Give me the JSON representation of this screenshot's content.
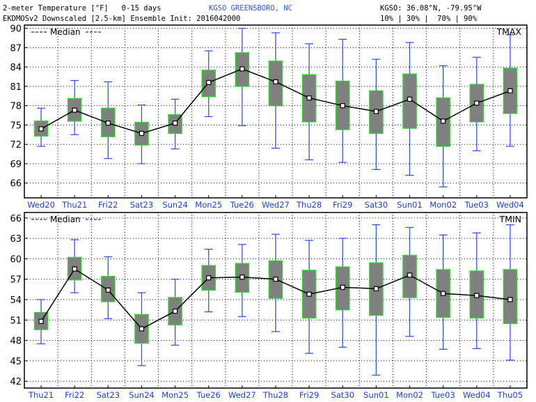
{
  "header": {
    "line1": "2-meter Temperature [°F]   0-15 days",
    "line2": "EKDMOSv2 Downscaled [2.5-km] Ensemble Init: 2016042000",
    "station": "KGSO GREENSBORO, NC",
    "coords": "KGSO: 36.08°N, -79.95°W",
    "percentiles": "10% | 30% |  70% | 90%"
  },
  "colors": {
    "box_fill": "#808080",
    "box_edge": "#33cc33",
    "whisker": "#3355ee",
    "median": "#000000",
    "tick_label": "#1a3fd6",
    "station_text": "#3355ee"
  },
  "chart_data": [
    {
      "type": "box",
      "panel_label": "TMAX",
      "legend": "Median",
      "categories": [
        "Wed20",
        "Thu21",
        "Fri22",
        "Sat23",
        "Sun24",
        "Mon25",
        "Tue26",
        "Wed27",
        "Thu28",
        "Fri29",
        "Sat30",
        "Sun01",
        "Mon02",
        "Tue03",
        "Wed04"
      ],
      "p10": [
        71.7,
        73.5,
        69.8,
        69.0,
        71.3,
        76.3,
        74.9,
        71.4,
        69.6,
        69.2,
        68.1,
        67.2,
        65.4,
        71.0,
        71.7
      ],
      "p30": [
        73.3,
        75.6,
        73.2,
        71.9,
        73.7,
        79.4,
        81.0,
        78.0,
        75.5,
        74.3,
        73.7,
        74.5,
        71.7,
        75.5,
        76.8
      ],
      "median": [
        74.4,
        77.3,
        75.3,
        73.7,
        75.3,
        81.6,
        83.7,
        81.7,
        79.2,
        78.0,
        77.1,
        79.0,
        75.6,
        78.4,
        80.3
      ],
      "p70": [
        75.6,
        79.1,
        77.6,
        75.4,
        76.6,
        83.5,
        86.2,
        84.9,
        82.8,
        81.8,
        80.3,
        82.9,
        79.2,
        81.3,
        83.8
      ],
      "p90": [
        77.6,
        81.9,
        81.7,
        78.1,
        79.0,
        86.5,
        90.0,
        89.3,
        87.6,
        88.3,
        85.2,
        87.8,
        84.2,
        85.5,
        89.0
      ],
      "yticks": [
        66,
        69,
        72,
        75,
        78,
        81,
        84,
        87,
        90
      ],
      "ylim": [
        63.7,
        90.5
      ]
    },
    {
      "type": "box",
      "panel_label": "TMIN",
      "legend": "Median",
      "categories": [
        "Thu21",
        "Fri22",
        "Sat23",
        "Sun24",
        "Mon25",
        "Tue26",
        "Wed27",
        "Thu28",
        "Fri29",
        "Sat30",
        "Sun01",
        "Mon02",
        "Tue03",
        "Wed04",
        "Thu05"
      ],
      "p10": [
        47.5,
        55.0,
        51.2,
        44.3,
        47.3,
        52.2,
        51.5,
        49.3,
        46.1,
        47.0,
        42.9,
        48.6,
        46.7,
        46.8,
        45.1
      ],
      "p30": [
        49.6,
        56.9,
        53.7,
        47.6,
        50.3,
        55.4,
        55.1,
        54.2,
        51.3,
        52.5,
        51.7,
        54.3,
        51.4,
        51.3,
        50.5
      ],
      "median": [
        50.8,
        58.5,
        55.4,
        49.7,
        52.3,
        57.2,
        57.3,
        57.0,
        54.8,
        55.8,
        55.6,
        57.6,
        54.9,
        54.6,
        54.0
      ],
      "p70": [
        52.1,
        60.2,
        57.4,
        51.8,
        54.3,
        59.0,
        59.3,
        59.7,
        58.3,
        58.8,
        59.4,
        60.5,
        58.4,
        58.2,
        58.4
      ],
      "p90": [
        54.0,
        62.8,
        60.3,
        55.0,
        57.0,
        61.4,
        62.1,
        63.6,
        62.7,
        63.0,
        65.0,
        64.6,
        63.5,
        63.8,
        65.0
      ],
      "yticks": [
        42,
        45,
        48,
        51,
        54,
        57,
        60,
        63,
        66
      ],
      "ylim": [
        41.0,
        66.8
      ]
    }
  ]
}
